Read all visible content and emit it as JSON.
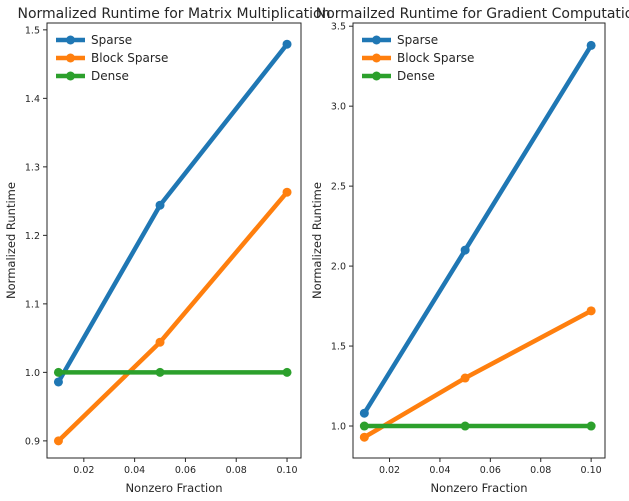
{
  "chart_data": [
    {
      "type": "line",
      "title": "Normalized Runtime for Matrix Multiplication",
      "xlabel": "Nonzero Fraction",
      "ylabel": "Normalized Runtime",
      "xlim": [
        0.0055,
        0.1055
      ],
      "ylim": [
        0.875,
        1.51
      ],
      "xticks": [
        0.02,
        0.04,
        0.06,
        0.08,
        0.1
      ],
      "xtick_labels": [
        "0.02",
        "0.04",
        "0.06",
        "0.08",
        "0.10"
      ],
      "yticks": [
        0.9,
        1.0,
        1.1,
        1.2,
        1.3,
        1.4,
        1.5
      ],
      "ytick_labels": [
        "0.9",
        "1.0",
        "1.1",
        "1.2",
        "1.3",
        "1.4",
        "1.5"
      ],
      "grid": false,
      "legend_position": "top-left",
      "x": [
        0.01,
        0.05,
        0.1
      ],
      "series": [
        {
          "name": "Sparse",
          "color": "#1f77b4",
          "values": [
            0.986,
            1.244,
            1.479
          ]
        },
        {
          "name": "Block Sparse",
          "color": "#ff7f0e",
          "values": [
            0.9,
            1.044,
            1.263
          ]
        },
        {
          "name": "Dense",
          "color": "#2ca02c",
          "values": [
            1.0,
            1.0,
            1.0
          ]
        }
      ]
    },
    {
      "type": "line",
      "title": "Normailzed Runtime for Gradient Computation",
      "xlabel": "Nonzero Fraction",
      "ylabel": "Normalized Runtime",
      "xlim": [
        0.0055,
        0.1055
      ],
      "ylim": [
        0.8,
        3.52
      ],
      "xticks": [
        0.02,
        0.04,
        0.06,
        0.08,
        0.1
      ],
      "xtick_labels": [
        "0.02",
        "0.04",
        "0.06",
        "0.08",
        "0.10"
      ],
      "yticks": [
        1.0,
        1.5,
        2.0,
        2.5,
        3.0,
        3.5
      ],
      "ytick_labels": [
        "1.0",
        "1.5",
        "2.0",
        "2.5",
        "3.0",
        "3.5"
      ],
      "grid": false,
      "legend_position": "top-left",
      "x": [
        0.01,
        0.05,
        0.1
      ],
      "series": [
        {
          "name": "Sparse",
          "color": "#1f77b4",
          "values": [
            1.08,
            2.1,
            3.38
          ]
        },
        {
          "name": "Block Sparse",
          "color": "#ff7f0e",
          "values": [
            0.93,
            1.3,
            1.72
          ]
        },
        {
          "name": "Dense",
          "color": "#2ca02c",
          "values": [
            1.0,
            1.0,
            1.0
          ]
        }
      ]
    }
  ]
}
